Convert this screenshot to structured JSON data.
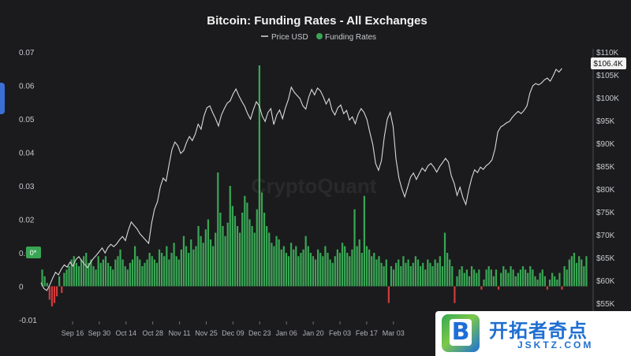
{
  "chart_data": {
    "type": "bar+line",
    "title": "Bitcoin: Funding Rates - All Exchanges",
    "legend": {
      "placement": "top-center",
      "items": [
        {
          "name": "Price USD",
          "color": "#d9d9d9"
        },
        {
          "name": "Funding Rates",
          "color": "#3aa655"
        }
      ]
    },
    "watermark": "CryptoQuant",
    "x_ticks": [
      "Sep 16",
      "Sep 30",
      "Oct 14",
      "Oct 28",
      "Nov 11",
      "Nov 25",
      "Dec 09",
      "Dec 23",
      "Jan 06",
      "Jan 20",
      "Feb 03",
      "Feb 17",
      "Mar 03"
    ],
    "left_axis": {
      "label": "",
      "ylim": [
        -0.01,
        0.07
      ],
      "ticks": [
        "0.07",
        "0.06",
        "0.05",
        "0.04",
        "0.03",
        "0.02",
        "0.01",
        "0",
        "-0.01"
      ]
    },
    "right_axis": {
      "label": "",
      "ylim": [
        55,
        110
      ],
      "unit": "K USD",
      "ticks": [
        "$110K",
        "$105K",
        "$100K",
        "$95K",
        "$90K",
        "$85K",
        "$80K",
        "$75K",
        "$70K",
        "$65K",
        "$60K",
        "$55K"
      ]
    },
    "left_marker_label": "0*",
    "last_price_label": "$106.4K",
    "colors": {
      "positive_bar": "#3aa655",
      "negative_bar": "#d03b3b",
      "price_line": "#d9d9d9",
      "last_price_bg": "#f2f2f2"
    },
    "funding_rates": [
      0.005,
      0.003,
      0.001,
      -0.004,
      -0.006,
      -0.005,
      -0.003,
      0.003,
      -0.002,
      0.004,
      0.005,
      0.006,
      0.008,
      0.009,
      0.007,
      0.006,
      0.008,
      0.009,
      0.01,
      0.007,
      0.008,
      0.006,
      0.005,
      0.009,
      0.007,
      0.008,
      0.009,
      0.007,
      0.006,
      0.005,
      0.008,
      0.009,
      0.011,
      0.008,
      0.006,
      0.005,
      0.007,
      0.008,
      0.012,
      0.009,
      0.008,
      0.006,
      0.007,
      0.008,
      0.01,
      0.009,
      0.008,
      0.007,
      0.011,
      0.01,
      0.009,
      0.012,
      0.008,
      0.01,
      0.013,
      0.009,
      0.008,
      0.011,
      0.015,
      0.012,
      0.01,
      0.014,
      0.011,
      0.012,
      0.018,
      0.015,
      0.013,
      0.017,
      0.02,
      0.014,
      0.012,
      0.016,
      0.034,
      0.022,
      0.018,
      0.015,
      0.019,
      0.03,
      0.024,
      0.021,
      0.018,
      0.016,
      0.022,
      0.027,
      0.025,
      0.02,
      0.018,
      0.016,
      0.023,
      0.066,
      0.028,
      0.022,
      0.018,
      0.016,
      0.013,
      0.012,
      0.015,
      0.014,
      0.011,
      0.012,
      0.01,
      0.009,
      0.013,
      0.011,
      0.012,
      0.009,
      0.01,
      0.011,
      0.015,
      0.012,
      0.01,
      0.009,
      0.008,
      0.011,
      0.01,
      0.009,
      0.012,
      0.01,
      0.008,
      0.007,
      0.009,
      0.011,
      0.01,
      0.013,
      0.012,
      0.01,
      0.009,
      0.011,
      0.023,
      0.012,
      0.014,
      0.01,
      0.027,
      0.012,
      0.011,
      0.009,
      0.01,
      0.008,
      0.009,
      0.007,
      0.006,
      0.008,
      -0.005,
      0.006,
      0.005,
      0.007,
      0.008,
      0.006,
      0.009,
      0.007,
      0.008,
      0.006,
      0.007,
      0.009,
      0.008,
      0.006,
      0.007,
      0.005,
      0.008,
      0.007,
      0.006,
      0.008,
      0.007,
      0.009,
      0.006,
      0.016,
      0.01,
      0.008,
      0.006,
      -0.005,
      0.003,
      0.005,
      0.006,
      0.004,
      0.005,
      0.003,
      0.006,
      0.005,
      0.004,
      0.005,
      -0.001,
      0.002,
      0.005,
      0.006,
      0.005,
      0.003,
      0.005,
      -0.001,
      0.004,
      0.006,
      0.005,
      0.004,
      0.006,
      0.005,
      0.003,
      0.004,
      0.005,
      0.006,
      0.005,
      0.004,
      0.006,
      0.005,
      0.003,
      0.002,
      0.004,
      0.005,
      0.003,
      -0.001,
      0.002,
      0.004,
      0.003,
      0.002,
      0.004,
      -0.001,
      0.006,
      0.005,
      0.008,
      0.009,
      0.01,
      0.007,
      0.009,
      0.008,
      0.006,
      0.009
    ],
    "price_usd_k": [
      59.5,
      58.2,
      57.8,
      59.0,
      60.5,
      61.8,
      61.2,
      62.5,
      63.4,
      62.9,
      64.0,
      63.1,
      64.6,
      65.2,
      64.3,
      63.5,
      62.8,
      63.9,
      64.8,
      65.5,
      66.3,
      67.1,
      66.0,
      67.2,
      67.9,
      67.4,
      68.0,
      68.9,
      69.6,
      68.7,
      71.0,
      72.8,
      72.0,
      71.3,
      70.2,
      69.5,
      68.8,
      68.1,
      72.5,
      75.6,
      77.2,
      80.5,
      82.4,
      81.7,
      85.3,
      88.6,
      90.3,
      89.5,
      87.8,
      88.4,
      90.2,
      91.5,
      90.6,
      92.0,
      94.2,
      93.1,
      96.0,
      97.8,
      98.2,
      96.7,
      95.4,
      93.8,
      96.2,
      97.6,
      98.8,
      99.3,
      100.8,
      101.9,
      100.4,
      99.2,
      98.1,
      96.5,
      95.3,
      97.4,
      99.1,
      98.2,
      96.0,
      94.8,
      96.8,
      97.6,
      94.1,
      96.2,
      97.3,
      95.4,
      97.8,
      99.6,
      102.3,
      101.2,
      100.5,
      99.8,
      98.2,
      97.5,
      100.1,
      101.8,
      100.6,
      102.1,
      101.5,
      100.2,
      98.6,
      99.8,
      97.3,
      96.2,
      97.8,
      98.4,
      96.5,
      97.2,
      95.1,
      95.8,
      94.3,
      96.4,
      97.6,
      96.8,
      95.2,
      92.4,
      89.8,
      85.6,
      84.1,
      86.2,
      91.5,
      95.3,
      96.8,
      93.7,
      86.5,
      82.4,
      80.1,
      78.3,
      80.4,
      82.6,
      83.5,
      82.1,
      83.4,
      84.6,
      83.9,
      85.1,
      85.6,
      84.8,
      83.7,
      84.9,
      85.8,
      86.7,
      85.9,
      82.9,
      81.2,
      78.6,
      80.4,
      78.1,
      76.6,
      79.8,
      82.4,
      84.2,
      83.6,
      84.8,
      84.3,
      85.1,
      85.6,
      86.4,
      88.7,
      92.5,
      93.6,
      94.0,
      94.5,
      94.8,
      95.7,
      96.4,
      97.0,
      96.5,
      97.2,
      98.2,
      101.0,
      102.6,
      103.1,
      102.8,
      103.2,
      103.9,
      104.3,
      103.6,
      104.8,
      106.2,
      105.6,
      106.4
    ],
    "price_line_end_fraction": 0.95
  },
  "badge": {
    "title": "开拓者奇点",
    "subtitle": "JSKTZ.COM",
    "logo_letter": "B"
  }
}
